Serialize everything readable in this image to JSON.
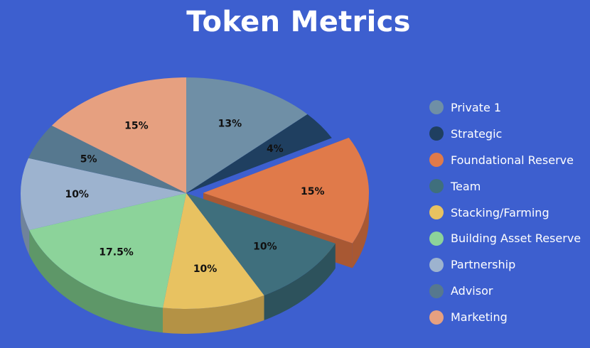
{
  "chart_data": {
    "type": "pie",
    "title": "Token Metrics",
    "legend_position": "right",
    "slices": [
      {
        "label": "Private 1",
        "value": 13,
        "display": "13%",
        "color": "#6f8fa6",
        "side_color": "#54707f"
      },
      {
        "label": "Strategic",
        "value": 4,
        "display": "4%",
        "color": "#1f3f60",
        "side_color": "#142b42"
      },
      {
        "label": "Foundational Reserve",
        "value": 15,
        "display": "15%",
        "color": "#e07a4a",
        "side_color": "#a85833",
        "exploded": true
      },
      {
        "label": "Team",
        "value": 10,
        "display": "10%",
        "color": "#3f6f7d",
        "side_color": "#2d525c"
      },
      {
        "label": "Stacking/Farming",
        "value": 10,
        "display": "10%",
        "color": "#e8c261",
        "side_color": "#b49245"
      },
      {
        "label": "Building Asset Reserve",
        "value": 17.5,
        "display": "17.5%",
        "color": "#8cd39a",
        "side_color": "#5e9768"
      },
      {
        "label": "Partnership",
        "value": 10,
        "display": "10%",
        "color": "#9db3cf",
        "side_color": "#70839b"
      },
      {
        "label": "Advisor",
        "value": 5,
        "display": "5%",
        "color": "#56788f",
        "side_color": "#3e596b"
      },
      {
        "label": "Marketing",
        "value": 15,
        "display": "15%",
        "color": "#e6a080",
        "side_color": "#b17860"
      }
    ]
  }
}
